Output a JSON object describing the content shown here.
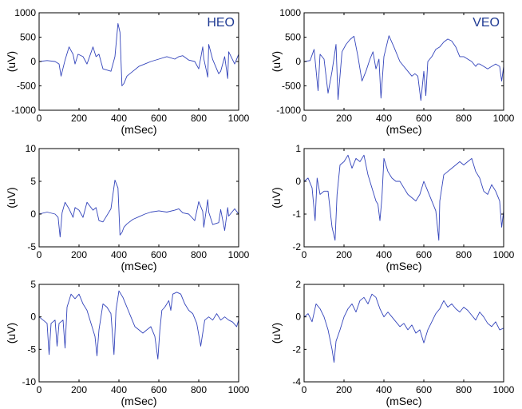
{
  "chart_data": [
    {
      "type": "line",
      "title": "HEO",
      "xlabel": "(mSec)",
      "ylabel": "(uV)",
      "xlim": [
        0,
        1000
      ],
      "ylim": [
        -1000,
        1000
      ],
      "xticks": [
        0,
        200,
        400,
        600,
        800,
        1000
      ],
      "yticks": [
        -1000,
        -500,
        0,
        500,
        1000
      ],
      "color": "#3344bb",
      "series": [
        {
          "x": [
            0,
            40,
            80,
            100,
            110,
            130,
            150,
            170,
            180,
            195,
            220,
            240,
            270,
            285,
            300,
            320,
            360,
            380,
            395,
            405,
            415,
            425,
            440,
            470,
            500,
            530,
            560,
            600,
            640,
            680,
            700,
            720,
            750,
            780,
            800,
            820,
            825,
            845,
            850,
            870,
            900,
            910,
            930,
            945,
            950,
            980,
            1000
          ],
          "y": [
            0,
            20,
            0,
            -50,
            -300,
            30,
            300,
            150,
            -50,
            150,
            100,
            -50,
            300,
            100,
            150,
            -150,
            -200,
            100,
            780,
            600,
            -500,
            -450,
            -300,
            -200,
            -100,
            -50,
            0,
            50,
            100,
            50,
            100,
            120,
            30,
            0,
            -150,
            300,
            60,
            -320,
            350,
            40,
            -250,
            -200,
            100,
            -350,
            200,
            -50,
            150
          ]
        }
      ]
    },
    {
      "type": "line",
      "title": "VEO",
      "xlabel": "(mSec)",
      "ylabel": "(uV)",
      "xlim": [
        0,
        1000
      ],
      "ylim": [
        -1000,
        1000
      ],
      "xticks": [
        0,
        200,
        400,
        600,
        800,
        1000
      ],
      "yticks": [
        -1000,
        -500,
        0,
        500,
        1000
      ],
      "color": "#3344bb",
      "series": [
        {
          "x": [
            0,
            30,
            50,
            70,
            80,
            100,
            120,
            140,
            160,
            170,
            190,
            210,
            230,
            250,
            270,
            290,
            310,
            330,
            345,
            360,
            375,
            385,
            400,
            425,
            450,
            480,
            500,
            520,
            540,
            555,
            570,
            585,
            600,
            610,
            620,
            640,
            660,
            680,
            700,
            720,
            740,
            760,
            780,
            800,
            820,
            840,
            860,
            870,
            880,
            900,
            920,
            940,
            960,
            980,
            990,
            1000
          ],
          "y": [
            0,
            20,
            250,
            -600,
            150,
            50,
            -650,
            -200,
            350,
            -780,
            200,
            350,
            450,
            520,
            100,
            -400,
            -200,
            50,
            200,
            -150,
            50,
            -750,
            100,
            530,
            300,
            0,
            -100,
            -200,
            -300,
            -250,
            -300,
            -800,
            -200,
            -700,
            0,
            100,
            250,
            300,
            400,
            460,
            420,
            300,
            100,
            100,
            50,
            0,
            -100,
            -50,
            -50,
            -100,
            -150,
            -100,
            -50,
            -100,
            -400,
            -100
          ]
        }
      ]
    },
    {
      "type": "line",
      "xlabel": "(mSec)",
      "ylabel": "(uV)",
      "xlim": [
        0,
        1000
      ],
      "ylim": [
        -5,
        10
      ],
      "xticks": [
        0,
        200,
        400,
        600,
        800,
        1000
      ],
      "yticks": [
        -5,
        0,
        5,
        10
      ],
      "color": "#3344bb",
      "series": [
        {
          "x": [
            0,
            40,
            80,
            95,
            105,
            115,
            130,
            150,
            170,
            180,
            200,
            220,
            240,
            270,
            285,
            300,
            320,
            360,
            380,
            395,
            405,
            415,
            425,
            440,
            470,
            500,
            530,
            560,
            600,
            640,
            680,
            700,
            720,
            750,
            780,
            800,
            820,
            825,
            845,
            850,
            870,
            900,
            910,
            930,
            945,
            950,
            980,
            1000
          ],
          "y": [
            0,
            0.3,
            0,
            -0.5,
            -3.5,
            0.2,
            1.8,
            0.8,
            -0.5,
            1.0,
            0.6,
            -0.5,
            1.8,
            0.6,
            1.0,
            -1.0,
            -1.2,
            0.8,
            5.2,
            4.0,
            -3.2,
            -2.8,
            -2.0,
            -1.5,
            -0.8,
            -0.4,
            0,
            0.3,
            0.5,
            0.3,
            0.6,
            0.8,
            0.2,
            0,
            -1.0,
            1.9,
            0.4,
            -2.0,
            2.2,
            0.3,
            -1.6,
            -1.3,
            0.7,
            -2.5,
            1.0,
            -0.3,
            0.8,
            0
          ]
        }
      ]
    },
    {
      "type": "line",
      "xlabel": "(mSec)",
      "ylabel": "(uV)",
      "xlim": [
        0,
        1000
      ],
      "ylim": [
        -2,
        1
      ],
      "xticks": [
        0,
        200,
        400,
        600,
        800,
        1000
      ],
      "yticks": [
        -2,
        -1,
        0,
        1
      ],
      "color": "#3344bb",
      "series": [
        {
          "x": [
            0,
            20,
            40,
            55,
            65,
            80,
            100,
            120,
            140,
            155,
            165,
            180,
            200,
            220,
            240,
            260,
            280,
            300,
            320,
            340,
            360,
            370,
            380,
            390,
            400,
            420,
            440,
            460,
            480,
            500,
            520,
            540,
            560,
            580,
            600,
            620,
            640,
            660,
            675,
            680,
            700,
            720,
            740,
            760,
            780,
            800,
            820,
            840,
            860,
            880,
            900,
            920,
            940,
            960,
            980,
            990,
            1000
          ],
          "y": [
            0,
            0.1,
            -0.2,
            -1.2,
            0.1,
            -0.4,
            -0.3,
            -0.3,
            -1.4,
            -1.8,
            -0.4,
            0.5,
            0.6,
            0.8,
            0.4,
            0.7,
            0.6,
            0.8,
            0.2,
            -0.2,
            -0.6,
            -0.7,
            -1.2,
            -0.5,
            0.7,
            0.3,
            0.1,
            0.0,
            0.0,
            -0.2,
            -0.4,
            -0.5,
            -0.6,
            -0.4,
            0.0,
            -0.3,
            -0.6,
            -0.9,
            -1.8,
            -0.6,
            0.2,
            0.3,
            0.4,
            0.5,
            0.6,
            0.5,
            0.6,
            0.7,
            0.3,
            0.1,
            -0.3,
            -0.4,
            -0.1,
            -0.3,
            -0.6,
            -1.4,
            -0.9
          ]
        }
      ]
    },
    {
      "type": "line",
      "xlabel": "(mSec)",
      "ylabel": "(uV)",
      "xlim": [
        0,
        1000
      ],
      "ylim": [
        -10,
        5
      ],
      "xticks": [
        0,
        200,
        400,
        600,
        800,
        1000
      ],
      "yticks": [
        -10,
        -5,
        0,
        5
      ],
      "color": "#3344bb",
      "series": [
        {
          "x": [
            0,
            20,
            40,
            50,
            60,
            80,
            90,
            100,
            120,
            130,
            140,
            160,
            180,
            200,
            220,
            240,
            260,
            280,
            290,
            300,
            320,
            340,
            360,
            375,
            385,
            400,
            420,
            440,
            460,
            480,
            500,
            520,
            540,
            560,
            580,
            595,
            605,
            615,
            630,
            650,
            660,
            670,
            690,
            710,
            730,
            750,
            770,
            790,
            810,
            830,
            850,
            870,
            890,
            910,
            930,
            950,
            970,
            990,
            1000
          ],
          "y": [
            0,
            -0.5,
            -1.0,
            -5.8,
            -1.0,
            -0.5,
            -4.5,
            -1.0,
            -0.5,
            -4.8,
            1.5,
            3.5,
            2.8,
            3.5,
            2.0,
            1.0,
            -1.0,
            -3.0,
            -6.0,
            -2.0,
            2.0,
            1.5,
            0.5,
            -5.8,
            1.0,
            4.0,
            3.0,
            1.5,
            0.0,
            -1.5,
            -2.0,
            -2.5,
            -2.0,
            -1.5,
            -3.0,
            -6.5,
            -2.0,
            1.0,
            1.5,
            2.5,
            1.0,
            3.5,
            3.8,
            3.5,
            2.0,
            1.0,
            0.5,
            -1.0,
            -4.5,
            -0.5,
            0.0,
            -0.5,
            0.5,
            -0.5,
            0.0,
            -0.5,
            -0.8,
            -1.5,
            -0.5
          ]
        }
      ]
    },
    {
      "type": "line",
      "xlabel": "(mSec)",
      "ylabel": "(uV)",
      "xlim": [
        0,
        1000
      ],
      "ylim": [
        -4,
        2
      ],
      "xticks": [
        0,
        200,
        400,
        600,
        800,
        1000
      ],
      "yticks": [
        -4,
        -2,
        0,
        2
      ],
      "color": "#3344bb",
      "series": [
        {
          "x": [
            0,
            20,
            40,
            60,
            80,
            100,
            120,
            140,
            150,
            160,
            180,
            200,
            220,
            240,
            260,
            280,
            300,
            320,
            340,
            360,
            380,
            400,
            420,
            440,
            460,
            480,
            500,
            520,
            540,
            560,
            580,
            600,
            620,
            640,
            660,
            680,
            700,
            720,
            740,
            760,
            780,
            800,
            820,
            840,
            860,
            880,
            900,
            920,
            940,
            960,
            980,
            1000
          ],
          "y": [
            0,
            0.2,
            -0.3,
            0.8,
            0.5,
            0.0,
            -0.8,
            -2.0,
            -2.8,
            -1.5,
            -0.8,
            0.0,
            0.5,
            0.8,
            0.3,
            1.0,
            1.2,
            0.8,
            1.4,
            1.2,
            0.5,
            0.0,
            0.3,
            0.0,
            -0.3,
            -0.6,
            -0.4,
            -0.8,
            -0.5,
            -1.0,
            -0.8,
            -1.6,
            -0.8,
            -0.3,
            0.2,
            0.5,
            1.0,
            0.6,
            0.8,
            0.5,
            0.3,
            0.6,
            0.4,
            0.1,
            -0.2,
            0.3,
            0.0,
            -0.4,
            -0.6,
            -0.3,
            -0.8,
            -0.7
          ]
        }
      ]
    }
  ]
}
